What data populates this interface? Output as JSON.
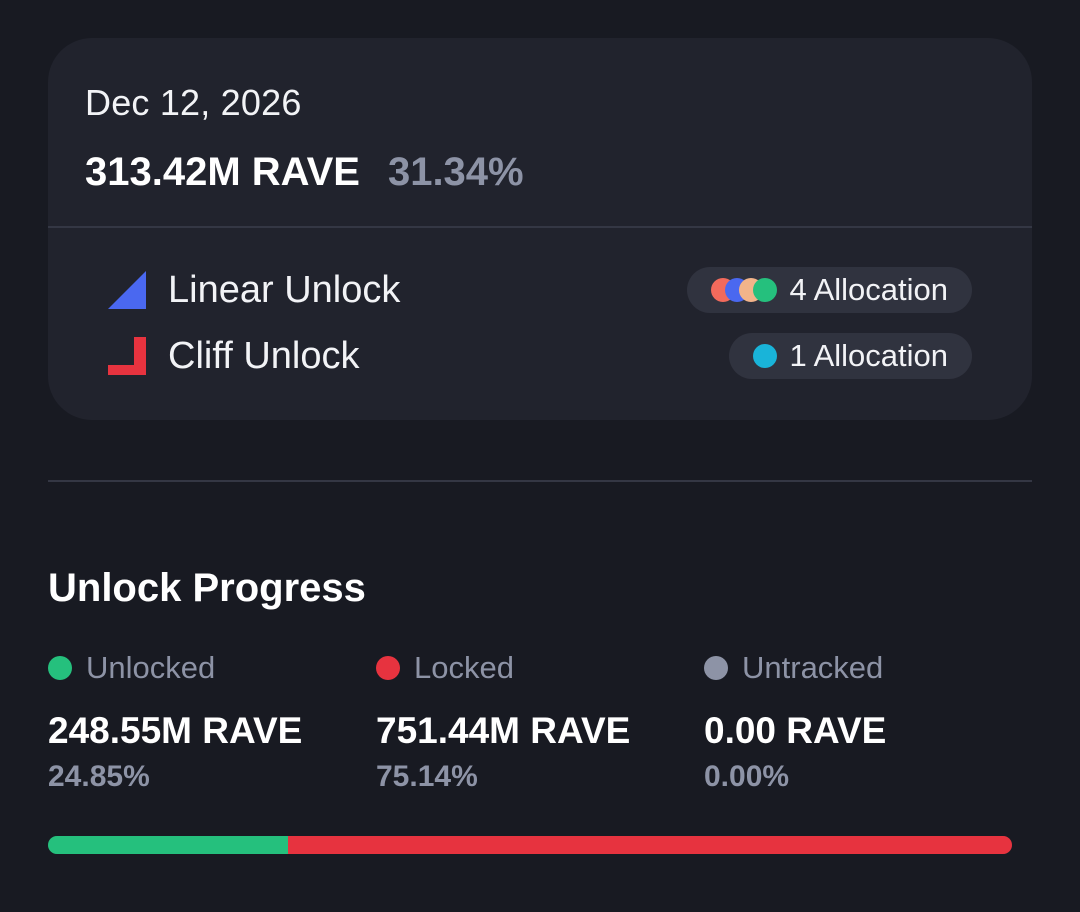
{
  "summary": {
    "date": "Dec 12, 2026",
    "amount": "313.42M RAVE",
    "percent": "31.34%"
  },
  "unlock_types": [
    {
      "label": "Linear Unlock",
      "icon": "linear-unlock-icon",
      "icon_color": "#4a68f0",
      "allocation_label": "4 Allocation",
      "allocation_colors": [
        "#f26a5c",
        "#4a68f0",
        "#f2b48a",
        "#25c07d"
      ]
    },
    {
      "label": "Cliff Unlock",
      "icon": "cliff-unlock-icon",
      "icon_color": "#e7333f",
      "allocation_label": "1 Allocation",
      "allocation_colors": [
        "#19b4d9"
      ]
    }
  ],
  "progress": {
    "title": "Unlock Progress",
    "stats": [
      {
        "label": "Unlocked",
        "value": "248.55M RAVE",
        "percent": "24.85%",
        "color": "#25c07d"
      },
      {
        "label": "Locked",
        "value": "751.44M RAVE",
        "percent": "75.14%",
        "color": "#e7333f"
      },
      {
        "label": "Untracked",
        "value": "0.00 RAVE",
        "percent": "0.00%",
        "color": "#8d93a6"
      }
    ],
    "bar_fractions": [
      0.2485,
      0.7514,
      0.0
    ]
  }
}
